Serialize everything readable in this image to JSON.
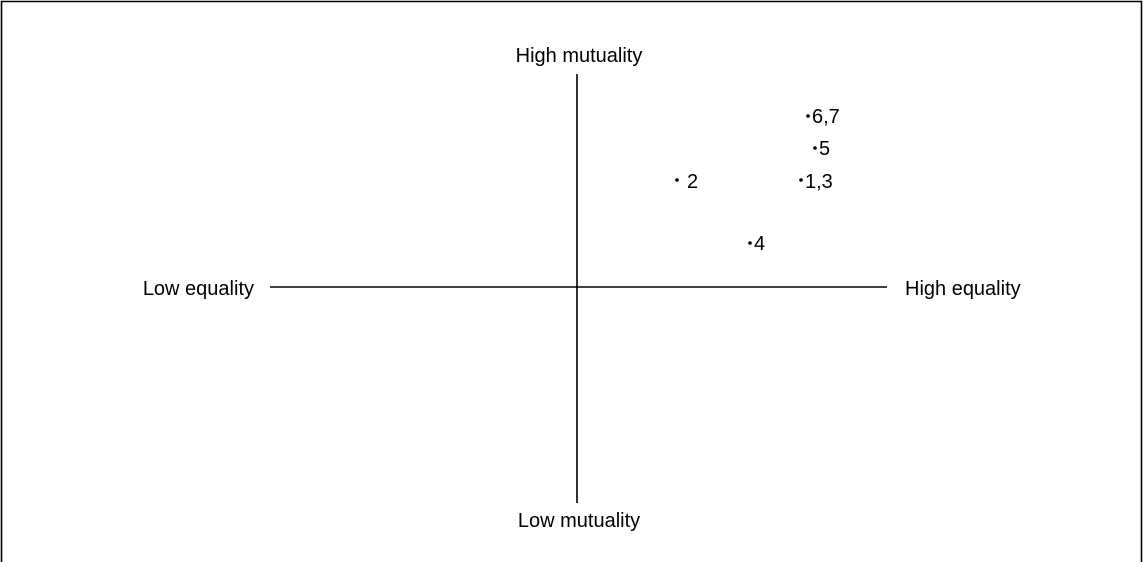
{
  "diagram": {
    "axis_labels": {
      "top": "High mutuality",
      "bottom": "Low mutuality",
      "left": "Low equality",
      "right": "High equality"
    },
    "points": [
      {
        "id": "6,7",
        "label": "6,7"
      },
      {
        "id": "5",
        "label": "5"
      },
      {
        "id": "2",
        "label": "2"
      },
      {
        "id": "1,3",
        "label": "1,3"
      },
      {
        "id": "4",
        "label": "4"
      }
    ]
  }
}
